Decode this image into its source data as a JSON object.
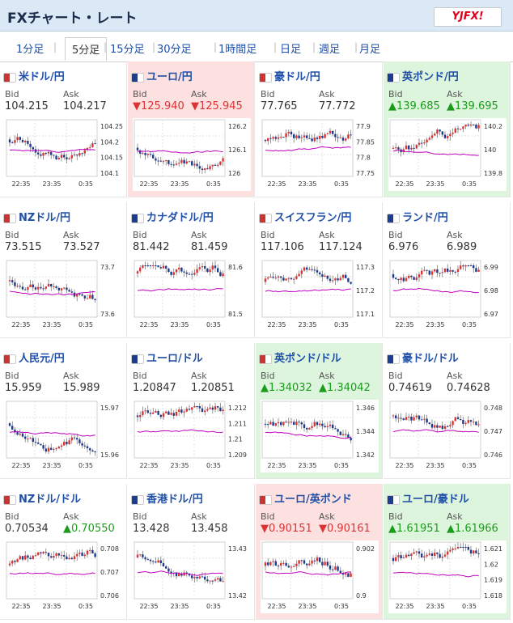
{
  "header": {
    "title": "FXチャート・レート",
    "logo": "YJFX!"
  },
  "tabs": [
    "1分足",
    "5分足",
    "15分足",
    "30分足",
    "1時間足",
    "日足",
    "週足",
    "月足"
  ],
  "active_tab": 1,
  "colors": {
    "up": "#1a9c1a",
    "down": "#d33",
    "candle_up": "#d33",
    "candle_down": "#1d3b8f",
    "ma": "#c000c0"
  },
  "cards": [
    {
      "name": "米ドル/円",
      "bid": "104.215",
      "ask": "104.217",
      "trend": "flat",
      "ticks": [
        "104.25",
        "104.2",
        "104.15",
        "104.1"
      ],
      "time": [
        "22:35",
        "23:35",
        "0:35"
      ]
    },
    {
      "name": "ユーロ/円",
      "bid": "▼125.940",
      "ask": "▼125.945",
      "trend": "down",
      "ticks": [
        "126.2",
        "126.1",
        "126"
      ],
      "time": [
        "22:35",
        "23:35",
        "0:35"
      ]
    },
    {
      "name": "豪ドル/円",
      "bid": "77.765",
      "ask": "77.772",
      "trend": "flat",
      "ticks": [
        "77.9",
        "77.85",
        "77.8",
        "77.75"
      ],
      "time": [
        "22:35",
        "23:35",
        "0:35"
      ]
    },
    {
      "name": "英ポンド/円",
      "bid": "▲139.685",
      "ask": "▲139.695",
      "trend": "up",
      "ticks": [
        "140.2",
        "140",
        "139.8"
      ],
      "time": [
        "22:35",
        "23:35",
        "0:35"
      ]
    },
    {
      "name": "NZドル/円",
      "bid": "73.515",
      "ask": "73.527",
      "trend": "flat",
      "ticks": [
        "73.7",
        "73.6"
      ],
      "time": [
        "22:35",
        "23:35",
        "0:35"
      ]
    },
    {
      "name": "カナダドル/円",
      "bid": "81.442",
      "ask": "81.459",
      "trend": "flat",
      "ticks": [
        "81.6",
        "81.5"
      ],
      "time": [
        "22:35",
        "23:35",
        "0:35"
      ]
    },
    {
      "name": "スイスフラン/円",
      "bid": "117.106",
      "ask": "117.124",
      "trend": "flat",
      "ticks": [
        "117.3",
        "117.2",
        "117.1"
      ],
      "time": [
        "22:35",
        "23:35",
        "0:35"
      ]
    },
    {
      "name": "ランド/円",
      "bid": "6.976",
      "ask": "6.989",
      "trend": "flat",
      "ticks": [
        "6.99",
        "6.98",
        "6.97"
      ],
      "time": [
        "22:35",
        "23:35",
        "0:35"
      ]
    },
    {
      "name": "人民元/円",
      "bid": "15.959",
      "ask": "15.989",
      "trend": "flat",
      "ticks": [
        "15.97",
        "15.96"
      ],
      "time": [
        "22:35",
        "23:35",
        "0:35"
      ]
    },
    {
      "name": "ユーロ/ドル",
      "bid": "1.20847",
      "ask": "1.20851",
      "trend": "flat",
      "ticks": [
        "1.212",
        "1.211",
        "1.21",
        "1.209"
      ],
      "time": [
        "22:35",
        "23:35",
        "0:35"
      ]
    },
    {
      "name": "英ポンド/ドル",
      "bid": "▲1.34032",
      "ask": "▲1.34042",
      "trend": "up",
      "ticks": [
        "1.346",
        "1.344",
        "1.342"
      ],
      "time": [
        "22:35",
        "23:35",
        "0:35"
      ]
    },
    {
      "name": "豪ドル/ドル",
      "bid": "0.74619",
      "ask": "0.74628",
      "trend": "flat",
      "ticks": [
        "0.748",
        "0.747",
        "0.746"
      ],
      "time": [
        "22:35",
        "23:35",
        "0:35"
      ]
    },
    {
      "name": "NZドル/ドル",
      "bid": "0.70534",
      "ask": "▲0.70550",
      "trend": "flat",
      "ask_up": true,
      "ticks": [
        "0.708",
        "0.707",
        "0.706"
      ],
      "time": [
        "22:35",
        "23:35",
        "0:35"
      ]
    },
    {
      "name": "香港ドル/円",
      "bid": "13.428",
      "ask": "13.458",
      "trend": "flat",
      "ticks": [
        "13.43",
        "13.42"
      ],
      "time": [
        "22:35",
        "23:35",
        "0:35"
      ]
    },
    {
      "name": "ユーロ/英ポンド",
      "bid": "▼0.90151",
      "ask": "▼0.90161",
      "trend": "down",
      "ticks": [
        "0.902",
        "0.9"
      ],
      "time": [
        "22:35",
        "23:35",
        "0:35"
      ]
    },
    {
      "name": "ユーロ/豪ドル",
      "bid": "▲1.61951",
      "ask": "▲1.61966",
      "trend": "up",
      "ticks": [
        "1.621",
        "1.62",
        "1.619",
        "1.618"
      ],
      "time": [
        "22:35",
        "23:35",
        "0:35"
      ]
    }
  ],
  "labels": {
    "bid": "Bid",
    "ask": "Ask"
  }
}
